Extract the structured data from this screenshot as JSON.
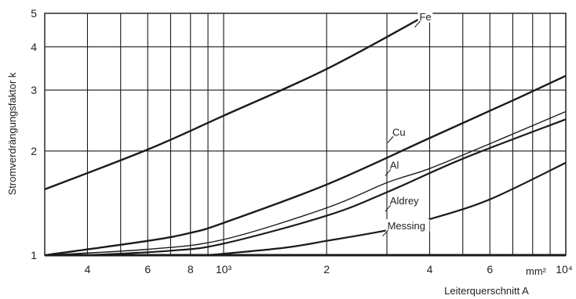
{
  "chart_data": {
    "type": "line",
    "xlabel": "Leiterquerschnitt A",
    "ylabel": "Stromverdrängungsfaktor k",
    "x_unit_label": "mm²",
    "x_scale": "log",
    "y_scale": "log",
    "xlim": [
      300,
      10000
    ],
    "ylim": [
      1,
      5
    ],
    "grid": true,
    "x_ticks": [
      {
        "value": 400,
        "label": "4"
      },
      {
        "value": 600,
        "label": "6"
      },
      {
        "value": 800,
        "label": "8"
      },
      {
        "value": 1000,
        "label": "10³"
      },
      {
        "value": 2000,
        "label": "2"
      },
      {
        "value": 4000,
        "label": "4"
      },
      {
        "value": 6000,
        "label": "6"
      },
      {
        "value": 10000,
        "label": "10⁴"
      }
    ],
    "x_gridlines": [
      400,
      500,
      600,
      700,
      800,
      900,
      1000,
      2000,
      3000,
      4000,
      5000,
      6000,
      7000,
      8000,
      9000,
      10000
    ],
    "y_ticks": [
      {
        "value": 1,
        "label": "1"
      },
      {
        "value": 2,
        "label": "2"
      },
      {
        "value": 3,
        "label": "3"
      },
      {
        "value": 4,
        "label": "4"
      },
      {
        "value": 5,
        "label": "5"
      }
    ],
    "series": [
      {
        "name": "Fe",
        "width": 2.4,
        "points": [
          [
            300,
            1.55
          ],
          [
            600,
            2.02
          ],
          [
            1000,
            2.53
          ],
          [
            2000,
            3.45
          ],
          [
            4000,
            5.0
          ]
        ]
      },
      {
        "name": "Cu",
        "width": 2.4,
        "points": [
          [
            300,
            1.0
          ],
          [
            600,
            1.1
          ],
          [
            800,
            1.16
          ],
          [
            1000,
            1.24
          ],
          [
            2000,
            1.6
          ],
          [
            4000,
            2.18
          ],
          [
            7000,
            2.8
          ],
          [
            10000,
            3.3
          ]
        ]
      },
      {
        "name": "Al",
        "width": 1.4,
        "points": [
          [
            300,
            1.0
          ],
          [
            600,
            1.04
          ],
          [
            1000,
            1.11
          ],
          [
            2000,
            1.37
          ],
          [
            3000,
            1.62
          ],
          [
            4000,
            1.78
          ],
          [
            6000,
            2.1
          ],
          [
            10000,
            2.6
          ]
        ]
      },
      {
        "name": "Aldrey",
        "width": 2.2,
        "points": [
          [
            400,
            1.0
          ],
          [
            700,
            1.03
          ],
          [
            1000,
            1.08
          ],
          [
            2000,
            1.3
          ],
          [
            3000,
            1.52
          ],
          [
            5000,
            1.9
          ],
          [
            10000,
            2.47
          ]
        ]
      },
      {
        "name": "Messing",
        "width": 2.2,
        "points": [
          [
            900,
            1.0
          ],
          [
            1500,
            1.05
          ],
          [
            2000,
            1.1
          ],
          [
            3000,
            1.18
          ],
          [
            4000,
            1.27
          ],
          [
            6000,
            1.45
          ],
          [
            10000,
            1.85
          ]
        ]
      }
    ],
    "labels": [
      {
        "text": "Fe",
        "x": 3600,
        "y": 4.7
      },
      {
        "text": "Cu",
        "x": 3000,
        "y": 2.18
      },
      {
        "text": "Al",
        "x": 2950,
        "y": 1.75
      },
      {
        "text": "Aldrey",
        "x": 2950,
        "y": 1.38
      },
      {
        "text": "Messing",
        "x": 2900,
        "y": 1.17
      }
    ]
  }
}
